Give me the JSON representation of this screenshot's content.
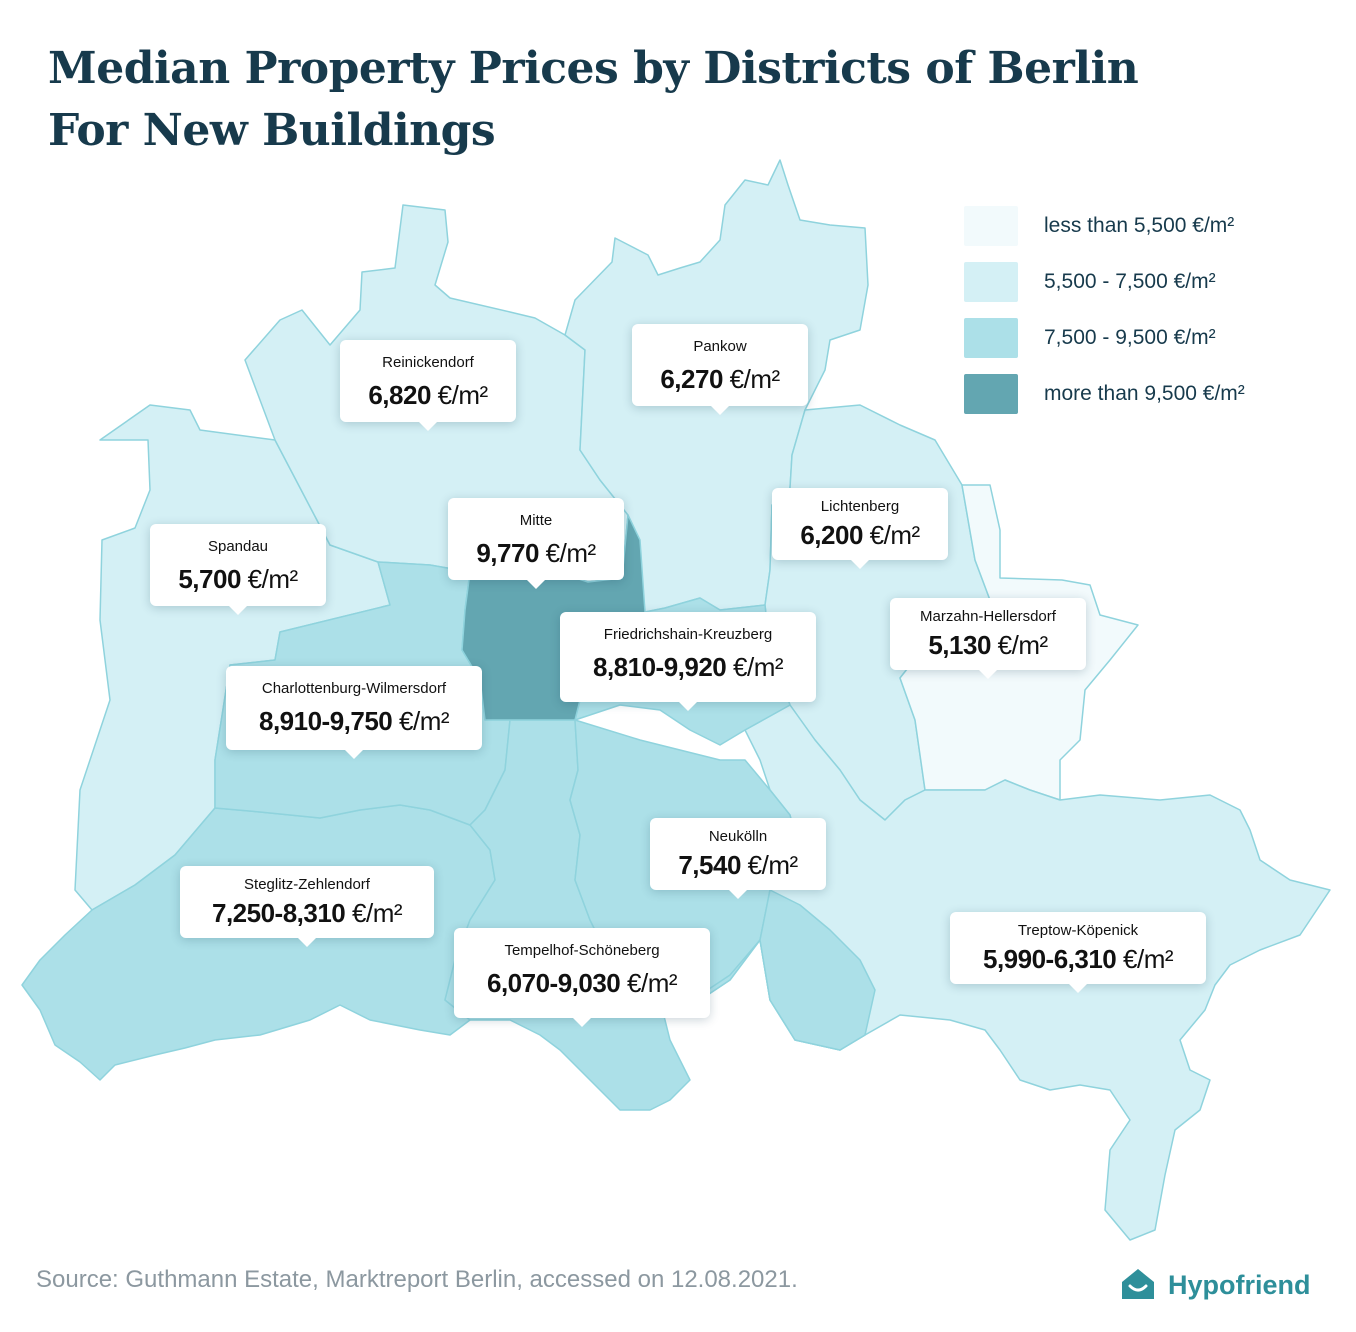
{
  "title": {
    "line1": "Median Property Prices by Districts of Berlin",
    "line2": "For New Buildings"
  },
  "colors": {
    "lt5500": "#f2fafc",
    "5500_7500": "#d4f0f5",
    "7500_9500": "#ace0e8",
    "gt9500": "#63a6b1",
    "border": "#8fd3dd",
    "title": "#173a4c",
    "brand": "#2e8f9a"
  },
  "legend": [
    {
      "label": "less than 5,500 €/m²",
      "color": "#f2fafc"
    },
    {
      "label": "5,500 - 7,500 €/m²",
      "color": "#d4f0f5"
    },
    {
      "label": "7,500 - 9,500 €/m²",
      "color": "#ace0e8"
    },
    {
      "label": "more than 9,500 €/m²",
      "color": "#63a6b1"
    }
  ],
  "districts": {
    "reinickendorf": {
      "name": "Reinickendorf",
      "value": "6,820",
      "unit": "€/m²"
    },
    "pankow": {
      "name": "Pankow",
      "value": "6,270",
      "unit": "€/m²"
    },
    "mitte": {
      "name": "Mitte",
      "value": "9,770",
      "unit": "€/m²"
    },
    "spandau": {
      "name": "Spandau",
      "value": "5,700",
      "unit": "€/m²"
    },
    "lichtenberg": {
      "name": "Lichtenberg",
      "value": "6,200",
      "unit": "€/m²"
    },
    "marzahn": {
      "name": "Marzahn-Hellersdorf",
      "value": "5,130",
      "unit": "€/m²"
    },
    "friedrichshain": {
      "name": "Friedrichshain-Kreuzberg",
      "value": "8,810-9,920",
      "unit": "€/m²"
    },
    "charlottenburg": {
      "name": "Charlottenburg-Wilmersdorf",
      "value": "8,910-9,750",
      "unit": "€/m²"
    },
    "neukoelln": {
      "name": "Neukölln",
      "value": "7,540",
      "unit": "€/m²"
    },
    "steglitz": {
      "name": "Steglitz-Zehlendorf",
      "value": "7,250-8,310",
      "unit": "€/m²"
    },
    "tempelhof": {
      "name": "Tempelhof-Schöneberg",
      "value": "6,070-9,030",
      "unit": "€/m²"
    },
    "treptow": {
      "name": "Treptow-Köpenick",
      "value": "5,990-6,310",
      "unit": "€/m²"
    }
  },
  "footer": {
    "source": "Source: Guthmann Estate, Marktreport Berlin, accessed on 12.08.2021.",
    "brand": "Hypofriend"
  }
}
